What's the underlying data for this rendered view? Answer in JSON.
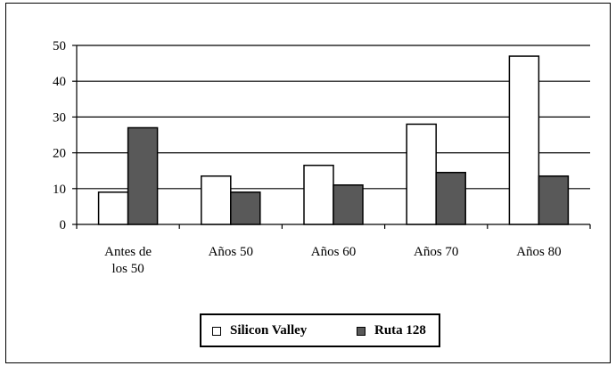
{
  "chart_data": {
    "type": "bar",
    "title": "",
    "xlabel": "",
    "ylabel": "",
    "categories": [
      [
        "Antes de",
        "los 50"
      ],
      [
        "Años 50"
      ],
      [
        "Años 60"
      ],
      [
        "Años 70"
      ],
      [
        "Años 80"
      ]
    ],
    "series": [
      {
        "name": "Silicon Valley",
        "values": [
          9,
          13.5,
          16.5,
          28,
          47
        ],
        "color": "#ffffff"
      },
      {
        "name": "Ruta 128",
        "values": [
          27,
          9,
          11,
          14.5,
          13.5
        ],
        "color": "#595959"
      }
    ],
    "ylim": [
      0,
      50
    ],
    "yticks": [
      "0",
      "10",
      "20",
      "30",
      "40",
      "50"
    ],
    "grid": true,
    "legend_position": "bottom"
  }
}
